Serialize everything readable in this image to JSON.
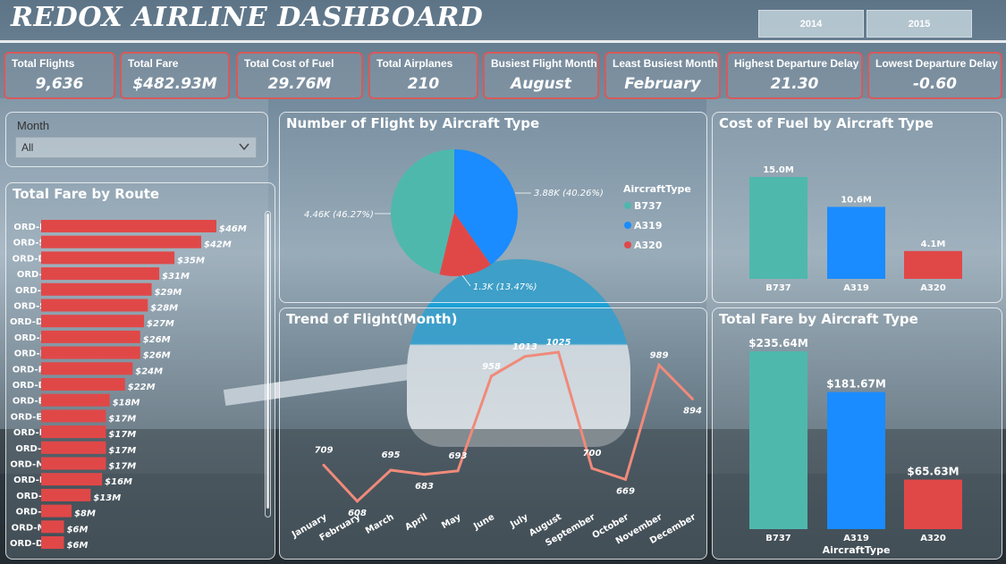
{
  "title": "REDOX AIRLINE DASHBOARD",
  "years": [
    "2014",
    "2015"
  ],
  "kpis": [
    {
      "label": "Total Flights",
      "value": "9,636"
    },
    {
      "label": "Total Fare",
      "value": "$482.93M"
    },
    {
      "label": "Total Cost of Fuel",
      "value": "29.76M"
    },
    {
      "label": "Total Airplanes",
      "value": "210"
    },
    {
      "label": "Busiest Flight Month",
      "value": "August"
    },
    {
      "label": "Least Busiest Month",
      "value": "February"
    },
    {
      "label": "Highest Departure Delay",
      "value": "21.30"
    },
    {
      "label": "Lowest Departure Delay",
      "value": "-0.60"
    }
  ],
  "slicer": {
    "label": "Month",
    "value": "All",
    "icon": "chevron-down-icon"
  },
  "colors": {
    "teal": "#4fb8ad",
    "blue": "#1a8cff",
    "red": "#e04848",
    "line": "#f08a7a",
    "kpi_border": "#d75a5a"
  },
  "chart_data": [
    {
      "type": "bar",
      "orientation": "horizontal",
      "title": "Total Fare by Route",
      "categories": [
        "ORD-LAX",
        "ORD-SFO",
        "ORD-DEN",
        "ORD-JFK",
        "ORD-ATL",
        "ORD-SEA",
        "ORD-DFW",
        "ORD-LAS",
        "ORD-MIA",
        "ORD-PHX",
        "ORD-DCA",
        "ORD-BOS",
        "ORD-EWR",
        "ORD-LGA",
        "ORD-IAH",
        "ORD-MCO",
        "ORD-PHL",
        "ORD-CLT",
        "ORD-FLL",
        "ORD-MSP",
        "ORD-DTW"
      ],
      "values": [
        46,
        42,
        35,
        31,
        29,
        28,
        27,
        26,
        26,
        24,
        22,
        18,
        17,
        17,
        17,
        17,
        16,
        13,
        8,
        6,
        6
      ],
      "labels": [
        "$46M",
        "$42M",
        "$35M",
        "$31M",
        "$29M",
        "$28M",
        "$27M",
        "$26M",
        "$26M",
        "$24M",
        "$22M",
        "$18M",
        "$17M",
        "$17M",
        "$17M",
        "$17M",
        "$16M",
        "$13M",
        "$8M",
        "$6M",
        "$6M"
      ]
    },
    {
      "type": "pie",
      "title": "Number of Flight by Aircraft Type",
      "legend_title": "AircraftType",
      "categories": [
        "B737",
        "A319",
        "A320"
      ],
      "values": [
        4460,
        3880,
        1300
      ],
      "labels": [
        "4.46K (46.27%)",
        "3.88K (40.26%)",
        "1.3K (13.47%)"
      ],
      "legend_position": "right"
    },
    {
      "type": "bar",
      "title": "Cost of Fuel by Aircraft Type",
      "categories": [
        "B737",
        "A319",
        "A320"
      ],
      "values": [
        15.0,
        10.6,
        4.1
      ],
      "labels": [
        "15.0M",
        "10.6M",
        "4.1M"
      ]
    },
    {
      "type": "line",
      "title": "Trend of Flight(Month)",
      "categories": [
        "January",
        "February",
        "March",
        "April",
        "May",
        "June",
        "July",
        "August",
        "September",
        "October",
        "November",
        "December"
      ],
      "values": [
        709,
        608,
        695,
        683,
        693,
        958,
        1013,
        1025,
        700,
        669,
        989,
        894
      ]
    },
    {
      "type": "bar",
      "title": "Total Fare by Aircraft Type",
      "xlabel": "AircraftType",
      "categories": [
        "B737",
        "A319",
        "A320"
      ],
      "values": [
        235.64,
        181.67,
        65.63
      ],
      "labels": [
        "$235.64M",
        "$181.67M",
        "$65.63M"
      ]
    }
  ]
}
